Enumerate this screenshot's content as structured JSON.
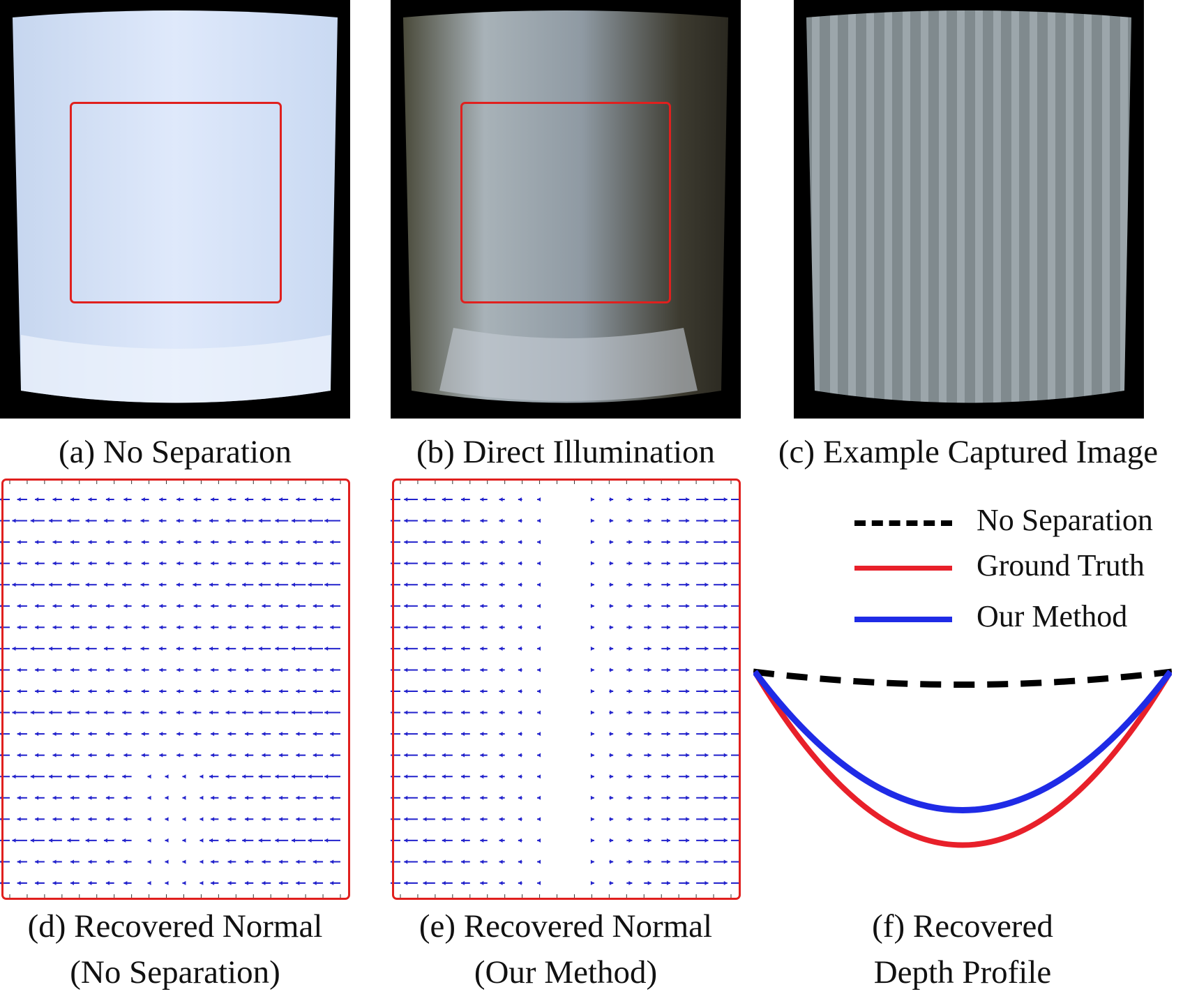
{
  "figure": {
    "panels": [
      {
        "id": "a",
        "caption": "(a) No Separation"
      },
      {
        "id": "b",
        "caption": "(b) Direct Illumination"
      },
      {
        "id": "c",
        "caption": "(c) Example Captured Image"
      },
      {
        "id": "d",
        "caption_line1": "(d) Recovered Normal",
        "caption_line2": "(No Separation)"
      },
      {
        "id": "e",
        "caption_line1": "(e) Recovered Normal",
        "caption_line2": "(Our Method)"
      },
      {
        "id": "f",
        "caption_line1": "(f) Recovered",
        "caption_line2": "Depth Profile"
      }
    ],
    "legend": {
      "no_separation": "No Separation",
      "ground_truth": "Ground Truth",
      "our_method": "Our Method"
    },
    "colors": {
      "highlight_box": "#e0201e",
      "arrows": "#2222cc",
      "ground_truth": "#e8202a",
      "our_method": "#1f2be6",
      "no_separation": "#000000"
    }
  }
}
